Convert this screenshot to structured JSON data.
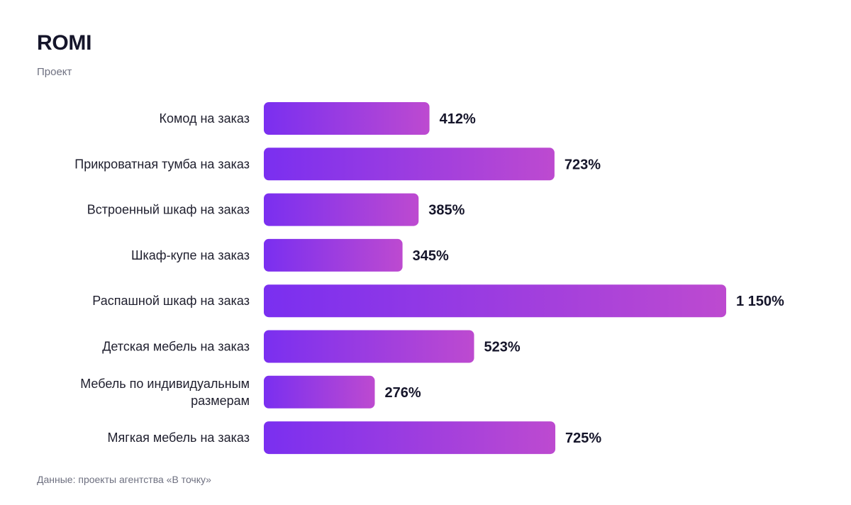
{
  "chart_data": {
    "type": "bar",
    "orientation": "horizontal",
    "title": "ROMI",
    "subtitle": "Проект",
    "categories": [
      "Комод на заказ",
      "Прикроватная тумба на заказ",
      "Встроенный шкаф на заказ",
      "Шкаф-купе на заказ",
      "Распашной шкаф на заказ",
      "Детская мебель на заказ",
      "Мебель по индивидуальным размерам",
      "Мягкая мебель на заказ"
    ],
    "values": [
      412,
      723,
      385,
      345,
      1150,
      523,
      276,
      725
    ],
    "value_labels": [
      "412%",
      "723%",
      "385%",
      "345%",
      "1 150%",
      "523%",
      "276%",
      "725%"
    ],
    "unit": "%",
    "xlim": [
      0,
      1150
    ],
    "grid": false,
    "legend": "none",
    "colors": {
      "bar_gradient_start": "#7a2ff0",
      "bar_gradient_end": "#bd4ad0"
    },
    "source": "Данные: проекты агентства «В точку»"
  }
}
